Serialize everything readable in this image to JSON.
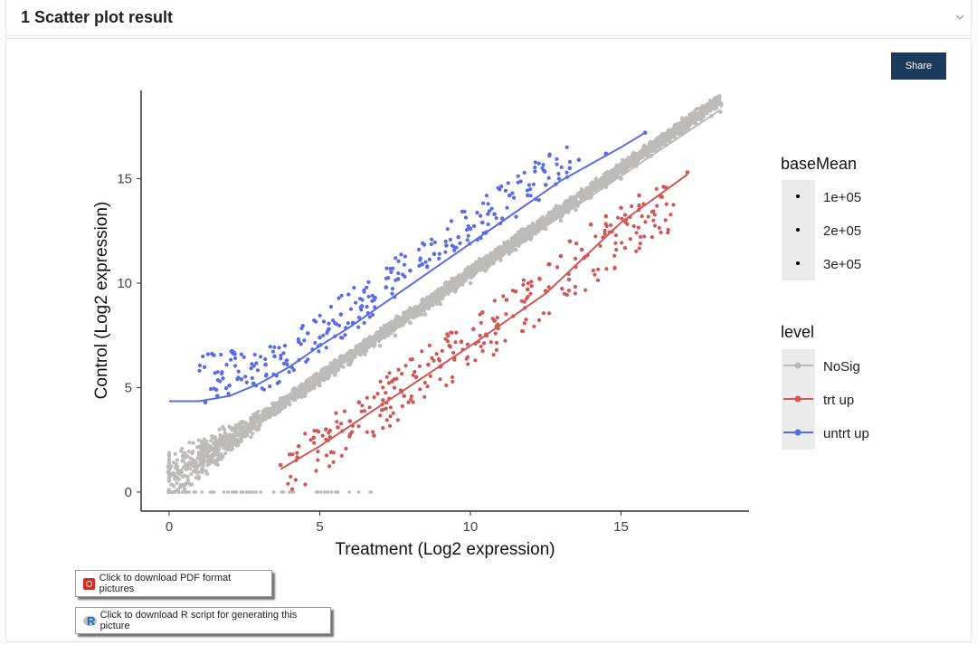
{
  "panel": {
    "title": "1 Scatter plot result",
    "collapse_icon": "chevron-down-icon"
  },
  "share_label": "Share",
  "downloads": {
    "pdf_label": "Click to download PDF format pictures",
    "pdf_icon": "pdf-icon",
    "r_label": "Click to download R script for generating this picture",
    "r_icon": "r-logo-icon"
  },
  "chart_data": {
    "type": "scatter",
    "xlabel": "Treatment (Log2 expression)",
    "ylabel": "Control  (Log2 expression)",
    "xlim": [
      -1,
      19.2
    ],
    "ylim": [
      -0.5,
      19
    ],
    "x_ticks": [
      0,
      5,
      10,
      15
    ],
    "y_ticks": [
      0,
      5,
      10,
      15
    ],
    "grid": false,
    "legend": [
      {
        "title": "baseMean",
        "entries": [
          "1e+05",
          "2e+05",
          "3e+05"
        ]
      },
      {
        "title": "level",
        "entries": [
          "NoSig",
          "trt up",
          "untrt up"
        ]
      }
    ],
    "series": [
      {
        "name": "NoSig",
        "color": "#bdbaba",
        "description": "dense cloud along the diagonal",
        "points": [
          [
            0,
            0.6
          ],
          [
            0.5,
            1.2
          ],
          [
            1,
            1.6
          ],
          [
            1.5,
            2
          ],
          [
            2,
            2.4
          ],
          [
            2.5,
            2.9
          ],
          [
            3,
            3.2
          ],
          [
            3.5,
            3.7
          ],
          [
            4,
            4.2
          ],
          [
            4.5,
            4.6
          ],
          [
            5,
            5.1
          ],
          [
            5.5,
            5.6
          ],
          [
            6,
            6.1
          ],
          [
            6.5,
            6.6
          ],
          [
            7,
            7
          ],
          [
            7.5,
            7.5
          ],
          [
            8,
            8.1
          ],
          [
            8.5,
            8.5
          ],
          [
            9,
            9
          ],
          [
            9.5,
            9.6
          ],
          [
            10,
            10
          ],
          [
            10.5,
            10.6
          ],
          [
            11,
            11.1
          ],
          [
            11.5,
            11.6
          ],
          [
            12,
            12.1
          ],
          [
            12.5,
            12.6
          ],
          [
            13,
            13
          ],
          [
            13.5,
            13.5
          ],
          [
            14,
            14.1
          ],
          [
            14.5,
            14.6
          ],
          [
            15,
            15
          ],
          [
            15.5,
            15.6
          ],
          [
            16,
            16.1
          ],
          [
            16.5,
            16.6
          ],
          [
            17,
            17.1
          ],
          [
            17.5,
            17.6
          ],
          [
            18,
            18
          ],
          [
            18.3,
            18.2
          ]
        ]
      },
      {
        "name": "trt up",
        "color": "#d15757",
        "points": [
          [
            3.7,
            1.3
          ],
          [
            4,
            1.8
          ],
          [
            4.3,
            2.2
          ],
          [
            4.8,
            2.6
          ],
          [
            5.2,
            3
          ],
          [
            5.6,
            3.1
          ],
          [
            6,
            3.4
          ],
          [
            6.3,
            4.3
          ],
          [
            6.8,
            2.7
          ],
          [
            7.1,
            4.4
          ],
          [
            7.4,
            5.3
          ],
          [
            7.8,
            4.6
          ],
          [
            8.2,
            5.5
          ],
          [
            8.6,
            6.1
          ],
          [
            9,
            6
          ],
          [
            9.3,
            7
          ],
          [
            9.7,
            7.2
          ],
          [
            10.1,
            7.8
          ],
          [
            10.4,
            8.6
          ],
          [
            10.8,
            8.2
          ],
          [
            11.2,
            9.2
          ],
          [
            11.5,
            9.6
          ],
          [
            11.9,
            9.7
          ],
          [
            12.3,
            10.2
          ],
          [
            12.6,
            10.9
          ],
          [
            13,
            11.3
          ],
          [
            13.3,
            12
          ],
          [
            13.7,
            11.6
          ],
          [
            14,
            12.8
          ],
          [
            14.5,
            13.2
          ],
          [
            15,
            13.6
          ],
          [
            15.6,
            14.2
          ],
          [
            17.2,
            15.3
          ]
        ]
      },
      {
        "name": "untrt up",
        "color": "#5b6be8",
        "points": [
          [
            1.2,
            4.3
          ],
          [
            1.6,
            4.6
          ],
          [
            2,
            5.1
          ],
          [
            2.4,
            5.4
          ],
          [
            2.8,
            5.2
          ],
          [
            3.2,
            6.1
          ],
          [
            3.5,
            6.5
          ],
          [
            3.9,
            6.3
          ],
          [
            4.3,
            7.2
          ],
          [
            4.6,
            7.6
          ],
          [
            5,
            7.4
          ],
          [
            5.3,
            7.8
          ],
          [
            5.7,
            8.5
          ],
          [
            6.1,
            8.1
          ],
          [
            6.4,
            8.9
          ],
          [
            6.8,
            9.2
          ],
          [
            7.2,
            9.8
          ],
          [
            7.6,
            10.2
          ],
          [
            8,
            10.6
          ],
          [
            8.4,
            10.9
          ],
          [
            8.8,
            11.4
          ],
          [
            9.2,
            11.8
          ],
          [
            9.6,
            12.2
          ],
          [
            10,
            12.6
          ],
          [
            10.4,
            12.9
          ],
          [
            10.8,
            13.3
          ],
          [
            11.3,
            14.2
          ],
          [
            11.9,
            14.2
          ],
          [
            12.5,
            14.7
          ],
          [
            13.3,
            15.5
          ],
          [
            13.6,
            15.9
          ],
          [
            14.5,
            16.2
          ],
          [
            15.8,
            17.2
          ]
        ]
      }
    ],
    "fit_lines": [
      {
        "series": "NoSig",
        "color": "#bdbaba",
        "points": [
          [
            0,
            0.7
          ],
          [
            18.3,
            18.3
          ]
        ]
      },
      {
        "series": "trt up",
        "color": "#d15757",
        "points": [
          [
            3.7,
            1.1
          ],
          [
            5,
            2.2
          ],
          [
            7.5,
            4.6
          ],
          [
            10,
            7
          ],
          [
            12.5,
            9.5
          ],
          [
            15,
            12.9
          ],
          [
            17.2,
            15.2
          ]
        ]
      },
      {
        "series": "untrt up",
        "color": "#5b6be8",
        "points": [
          [
            0,
            4.35
          ],
          [
            1,
            4.35
          ],
          [
            2,
            4.6
          ],
          [
            3,
            5.2
          ],
          [
            4,
            6
          ],
          [
            5,
            7
          ],
          [
            6,
            7.9
          ],
          [
            7,
            8.9
          ],
          [
            8,
            9.9
          ],
          [
            9,
            10.9
          ],
          [
            10,
            11.9
          ],
          [
            11,
            12.9
          ],
          [
            12,
            13.9
          ],
          [
            13,
            14.9
          ],
          [
            14,
            15.7
          ],
          [
            15,
            16.5
          ],
          [
            15.8,
            17.2
          ]
        ]
      }
    ]
  }
}
